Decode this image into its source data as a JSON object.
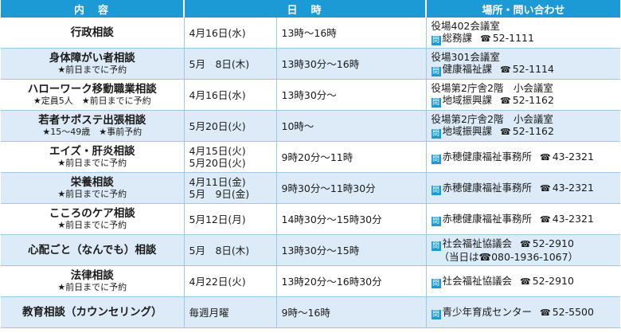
{
  "headers": {
    "col1": "内　容",
    "col2": "日　時",
    "col3": "場所・問い合わせ"
  },
  "badge": "問",
  "tel_icon": "☎",
  "rows": [
    {
      "title": "行政相談",
      "notes": [],
      "dates": [
        "4月16日(水)"
      ],
      "time": "13時～16時",
      "place": "役場402会議室",
      "contact": "総務課",
      "tel": "52-1111",
      "extra": ""
    },
    {
      "title": "身体障がい者相談",
      "notes": [
        "★前日までに予約"
      ],
      "dates": [
        "5月　8日(木)"
      ],
      "time": "13時30分～16時",
      "place": "役場301会議室",
      "contact": "健康福祉課",
      "tel": "52-1114",
      "extra": ""
    },
    {
      "title": "ハローワーク移動職業相談",
      "notes": [
        "★定員5人　★前日までに予約"
      ],
      "dates": [
        "4月16日(水)"
      ],
      "time": "13時30分～",
      "place": "役場第2庁舎2階　小会議室",
      "contact": "地域振興課",
      "tel": "52-1162",
      "extra": ""
    },
    {
      "title": "若者サポステ出張相談",
      "notes": [
        "★15～49歳　★事前予約"
      ],
      "dates": [
        "5月20日(火)"
      ],
      "time": "10時～",
      "place": "役場第2庁舎2階　小会議室",
      "contact": "地域振興課",
      "tel": "52-1162",
      "extra": ""
    },
    {
      "title": "エイズ・肝炎相談",
      "notes": [
        "★前日までに予約"
      ],
      "dates": [
        "4月15日(火)",
        "5月20日(火)"
      ],
      "time": "9時20分～11時",
      "place": "",
      "contact": "赤穂健康福祉事務所",
      "tel": "43-2321",
      "extra": ""
    },
    {
      "title": "栄養相談",
      "notes": [
        "★前日までに予約"
      ],
      "dates": [
        "4月11日(金)",
        "5月　9日(金)"
      ],
      "time": "9時30分～11時30分",
      "place": "",
      "contact": "赤穂健康福祉事務所",
      "tel": "43-2321",
      "extra": ""
    },
    {
      "title": "こころのケア相談",
      "notes": [
        "★前日までに予約"
      ],
      "dates": [
        "5月12日(月)"
      ],
      "time": "14時30分～15時30分",
      "place": "",
      "contact": "赤穂健康福祉事務所",
      "tel": "43-2321",
      "extra": ""
    },
    {
      "title": "心配ごと（なんでも）相談",
      "notes": [],
      "dates": [
        "5月　8日(木)"
      ],
      "time": "13時30分～15時",
      "place": "",
      "contact": "社会福祉協議会",
      "tel": "52-2910",
      "extra": "（当日は☎080-1936-1067）"
    },
    {
      "title": "法律相談",
      "notes": [
        "★前日までに予約"
      ],
      "dates": [
        "4月22日(火)"
      ],
      "time": "13時20分～16時30分",
      "place": "",
      "contact": "社会福祉協議会",
      "tel": "52-2910",
      "extra": ""
    },
    {
      "title": "教育相談（カウンセリング）",
      "notes": [],
      "dates": [
        "毎週月曜"
      ],
      "time": "9時～16時",
      "place": "",
      "contact": "青少年育成センター",
      "tel": "52-5500",
      "extra": ""
    }
  ]
}
